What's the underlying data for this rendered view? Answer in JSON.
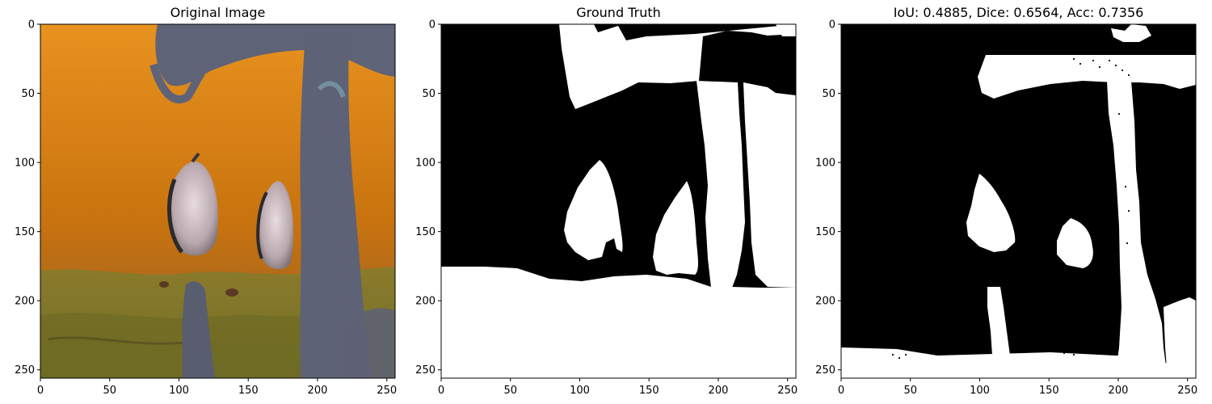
{
  "chart_data": [
    {
      "type": "image",
      "title": "Original Image",
      "xlim": [
        0,
        256
      ],
      "ylim": [
        256,
        0
      ],
      "xticks": [
        0,
        50,
        100,
        150,
        200,
        250
      ],
      "yticks": [
        0,
        50,
        100,
        150,
        200,
        250
      ],
      "content": "underwater scene"
    },
    {
      "type": "image",
      "title": "Ground Truth",
      "xlim": [
        0,
        256
      ],
      "ylim": [
        256,
        0
      ],
      "xticks": [
        0,
        50,
        100,
        150,
        200,
        250
      ],
      "yticks": [
        0,
        50,
        100,
        150,
        200,
        250
      ],
      "content": "binary mask"
    },
    {
      "type": "image",
      "title": "IoU: 0.4885, Dice: 0.6564, Acc: 0.7356",
      "xlim": [
        0,
        256
      ],
      "ylim": [
        256,
        0
      ],
      "xticks": [
        0,
        50,
        100,
        150,
        200,
        250
      ],
      "yticks": [
        0,
        50,
        100,
        150,
        200,
        250
      ],
      "content": "binary mask",
      "metrics": {
        "iou": 0.4885,
        "dice": 0.6564,
        "acc": 0.7356
      }
    }
  ],
  "colors": {
    "water": "#c9730f",
    "water_light": "#e8921f",
    "seafloor": "#7e7a2a",
    "coral": "#5e6378",
    "fish": "#cfc2c6",
    "mask_fg": "#ffffff",
    "mask_bg": "#000000"
  }
}
